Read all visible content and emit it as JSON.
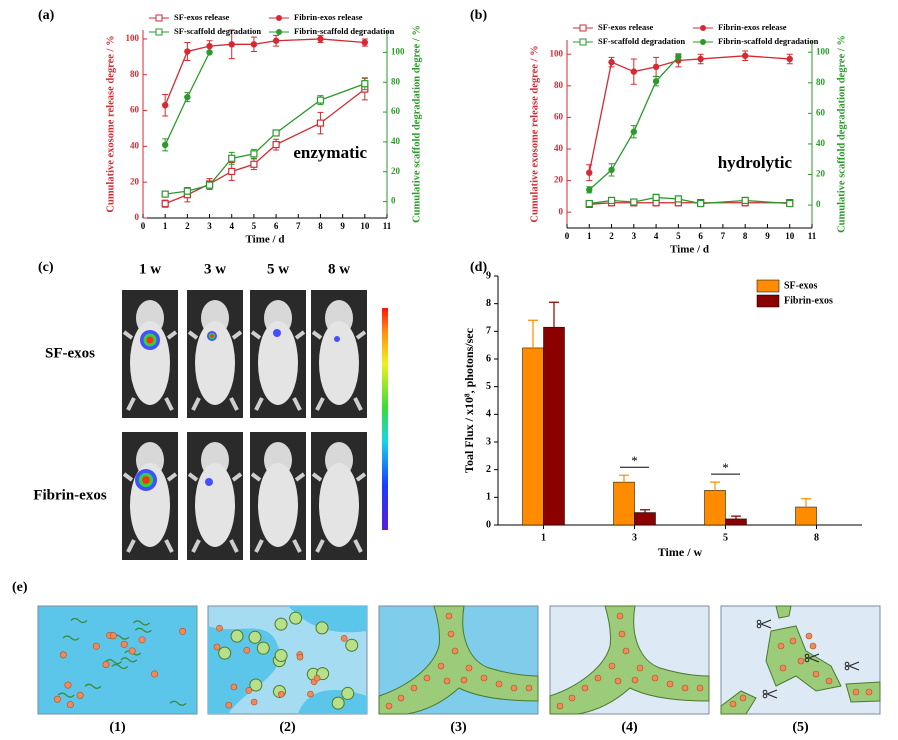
{
  "chart_data": [
    {
      "type": "line",
      "label": "(a)",
      "annotation": "enzymatic",
      "x_label": "Time / d",
      "y_label": "Cumulative exosome release degree / %",
      "y2_label": "Cumulative scaffold degradation degree / %",
      "xlim": [
        0,
        11
      ],
      "xticks": [
        0,
        1,
        2,
        3,
        4,
        5,
        6,
        7,
        8,
        9,
        10,
        11
      ],
      "ylim": [
        0,
        105
      ],
      "yticks": [
        0,
        20,
        40,
        60,
        80,
        100
      ],
      "y2lim": [
        -11,
        115
      ],
      "y2ticks": [
        0,
        20,
        40,
        60,
        80,
        100
      ],
      "series": [
        {
          "name": "SF-exos release",
          "color": "#d42a33",
          "marker": "open-square",
          "axis": "y",
          "x": [
            1,
            2,
            3,
            4,
            5,
            6,
            8,
            10
          ],
          "values": [
            8,
            13,
            19,
            26,
            30,
            41,
            53,
            72
          ],
          "errors": [
            2,
            4,
            3,
            5,
            3,
            3,
            6,
            6
          ]
        },
        {
          "name": "Fibrin-exos release",
          "color": "#d42a33",
          "marker": "circle",
          "axis": "y",
          "x": [
            1,
            2,
            3,
            4,
            5,
            6,
            8,
            10
          ],
          "values": [
            63,
            93,
            96,
            97,
            97,
            99,
            100,
            98
          ],
          "errors": [
            6,
            5,
            3,
            8,
            4,
            3,
            2,
            2
          ]
        },
        {
          "name": "SF-scaffold degradation",
          "color": "#2b9a2b",
          "marker": "open-square",
          "axis": "y2",
          "x": [
            1,
            2,
            3,
            4,
            5,
            6,
            8,
            10
          ],
          "values": [
            5,
            7,
            11,
            29,
            32,
            46,
            68,
            79
          ],
          "errors": [
            1,
            2,
            2,
            4,
            3,
            1,
            3,
            4
          ]
        },
        {
          "name": "Fibrin-scaffold degradation",
          "color": "#2b9a2b",
          "marker": "circle",
          "axis": "y2",
          "x": [
            1,
            2,
            3
          ],
          "values": [
            38,
            70,
            100
          ],
          "errors": [
            4,
            3,
            0
          ]
        }
      ]
    },
    {
      "type": "line",
      "label": "(b)",
      "annotation": "hydrolytic",
      "x_label": "Time / d",
      "y_label": "Cumulative exosome release degree / %",
      "y2_label": "Cumulative scaffold degradation degree / %",
      "xlim": [
        0,
        11
      ],
      "xticks": [
        0,
        1,
        2,
        3,
        4,
        5,
        6,
        7,
        8,
        9,
        10,
        11
      ],
      "ylim": [
        -10,
        109
      ],
      "yticks": [
        0,
        20,
        40,
        60,
        80,
        100
      ],
      "y2lim": [
        -15,
        108
      ],
      "y2ticks": [
        0,
        20,
        40,
        60,
        80,
        100
      ],
      "series": [
        {
          "name": "SF-exos release",
          "color": "#d42a33",
          "marker": "open-square",
          "axis": "y",
          "x": [
            1,
            2,
            3,
            4,
            5,
            6,
            8,
            10
          ],
          "values": [
            5,
            6,
            6,
            6,
            6,
            6,
            6,
            6
          ],
          "errors": [
            2,
            2,
            2,
            2,
            2,
            2,
            2,
            2
          ]
        },
        {
          "name": "Fibrin-exos release",
          "color": "#d42a33",
          "marker": "circle",
          "axis": "y",
          "x": [
            1,
            2,
            3,
            4,
            5,
            6,
            8,
            10
          ],
          "values": [
            25,
            95,
            89,
            92,
            96,
            97,
            99,
            97
          ],
          "errors": [
            5,
            3,
            8,
            6,
            4,
            3,
            3,
            3
          ]
        },
        {
          "name": "SF-scaffold degradation",
          "color": "#2b9a2b",
          "marker": "open-square",
          "axis": "y2",
          "x": [
            1,
            2,
            3,
            4,
            5,
            6,
            8,
            10
          ],
          "values": [
            1,
            3,
            2,
            5,
            4,
            1,
            3,
            1
          ],
          "errors": [
            1,
            2,
            1,
            2,
            2,
            1,
            2,
            1
          ]
        },
        {
          "name": "Fibrin-scaffold degradation",
          "color": "#2b9a2b",
          "marker": "circle",
          "axis": "y2",
          "x": [
            1,
            2,
            3,
            4,
            5
          ],
          "values": [
            10,
            23,
            48,
            81,
            97
          ],
          "errors": [
            2,
            4,
            4,
            3,
            2
          ]
        }
      ]
    },
    {
      "type": "bar",
      "label": "(d)",
      "x_label": "Time / w",
      "y_label": "Toal Flux / x10⁸, photons/sec",
      "categories": [
        "1",
        "3",
        "5",
        "8"
      ],
      "ylim": [
        0,
        9
      ],
      "yticks": [
        0,
        1,
        2,
        3,
        4,
        5,
        6,
        7,
        8,
        9
      ],
      "legend": "top-right",
      "series": [
        {
          "name": "SF-exos",
          "color": "#ff8c00",
          "values": [
            6.4,
            1.55,
            1.25,
            0.65
          ],
          "errors": [
            1.0,
            0.25,
            0.3,
            0.3
          ]
        },
        {
          "name": "Fibrin-exos",
          "color": "#8b0000",
          "values": [
            7.15,
            0.45,
            0.22,
            null
          ],
          "errors": [
            0.9,
            0.1,
            0.1,
            null
          ]
        }
      ],
      "annotations": [
        {
          "text": "*",
          "category": "3"
        },
        {
          "text": "*",
          "category": "5"
        }
      ]
    }
  ],
  "panel_c": {
    "label": "(c)",
    "columns": [
      "1 w",
      "3 w",
      "5 w",
      "8 w"
    ],
    "rows": [
      "SF-exos",
      "Fibrin-exos"
    ]
  },
  "panel_e": {
    "label": "(e)",
    "steps": [
      "(1)",
      "(2)",
      "(3)",
      "(4)",
      "(5)"
    ]
  }
}
